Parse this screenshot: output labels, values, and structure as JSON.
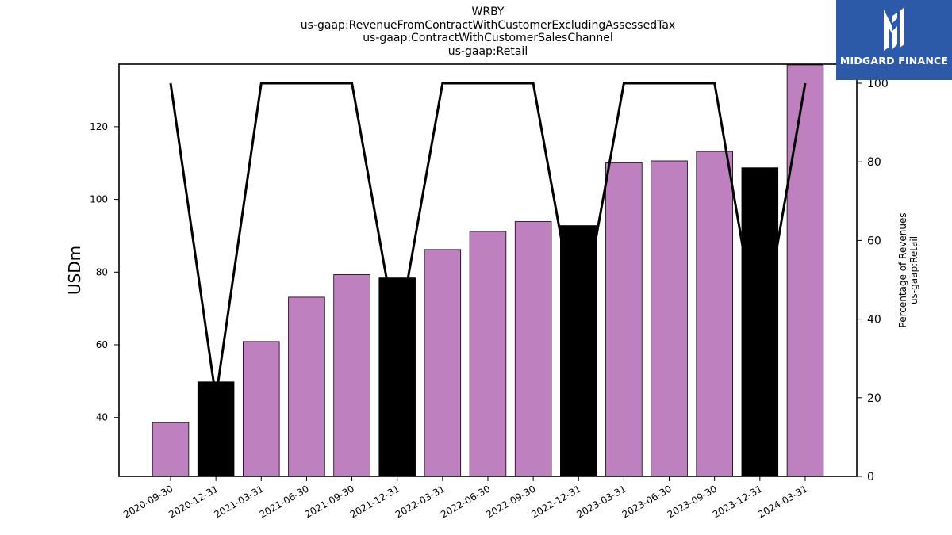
{
  "title": {
    "lines": [
      "WRBY",
      "us-gaap:RevenueFromContractWithCustomerExcludingAssessedTax",
      "us-gaap:ContractWithCustomerSalesChannel",
      "us-gaap:Retail"
    ]
  },
  "logo": {
    "text": "MIDGARD FINANCE",
    "icon": "midgard-logo-icon",
    "background": "#2d5aa8"
  },
  "chart_data": {
    "type": "bar",
    "categories": [
      "2020-09-30",
      "2020-12-31",
      "2021-03-31",
      "2021-06-30",
      "2021-09-30",
      "2021-12-31",
      "2022-03-31",
      "2022-06-30",
      "2022-09-30",
      "2022-12-31",
      "2023-03-31",
      "2023-06-30",
      "2023-09-30",
      "2023-12-31",
      "2024-03-31"
    ],
    "series": [
      {
        "type": "bar",
        "axis": "left",
        "values": [
          38.6,
          49.8,
          60.9,
          73.1,
          79.3,
          78.4,
          86.2,
          91.2,
          93.9,
          92.8,
          110.1,
          110.6,
          113.2,
          108.7,
          137.0
        ],
        "colors": [
          "#bf80bf",
          "#000000",
          "#bf80bf",
          "#bf80bf",
          "#bf80bf",
          "#000000",
          "#bf80bf",
          "#bf80bf",
          "#bf80bf",
          "#000000",
          "#bf80bf",
          "#bf80bf",
          "#bf80bf",
          "#000000",
          "#bf80bf"
        ]
      },
      {
        "type": "line",
        "axis": "right",
        "color": "#000000",
        "values": [
          100,
          20,
          100,
          100,
          100,
          35,
          100,
          100,
          100,
          36,
          100,
          100,
          100,
          33,
          100
        ]
      }
    ],
    "ylabel": "USDm",
    "ylabel_right": [
      "Percentage of Revenues",
      "us-gaap:Retail"
    ],
    "ylim": [
      23.8,
      137.2
    ],
    "yticks": [
      40,
      60,
      80,
      100,
      120
    ],
    "ylim_right": [
      0,
      100
    ],
    "yticks_right": [
      0,
      20,
      40,
      60,
      80,
      100
    ],
    "grid": false
  }
}
